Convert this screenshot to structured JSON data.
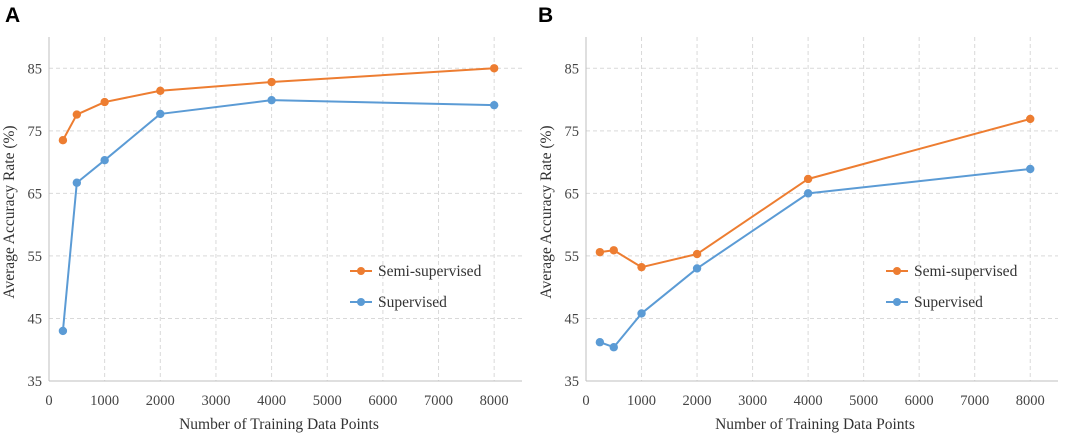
{
  "chart_data": [
    {
      "panel_label": "A",
      "type": "line",
      "xlabel": "Number of Training Data Points",
      "ylabel": "Average Accuracy Rate (%)",
      "xlim": [
        0,
        8500
      ],
      "ylim": [
        35,
        90
      ],
      "xticks": [
        0,
        1000,
        2000,
        3000,
        4000,
        5000,
        6000,
        7000,
        8000
      ],
      "yticks": [
        35,
        45,
        55,
        65,
        75,
        85
      ],
      "grid": true,
      "legend_position": "right",
      "series": [
        {
          "name": "Semi-supervised",
          "color": "#ED7D31",
          "x": [
            250,
            500,
            1000,
            2000,
            4000,
            8000
          ],
          "y": [
            73.5,
            77.6,
            79.6,
            81.4,
            82.8,
            85.0
          ]
        },
        {
          "name": "Supervised",
          "color": "#5B9BD5",
          "x": [
            250,
            500,
            1000,
            2000,
            4000,
            8000
          ],
          "y": [
            43.0,
            66.7,
            70.3,
            77.7,
            79.9,
            79.1
          ]
        }
      ]
    },
    {
      "panel_label": "B",
      "type": "line",
      "xlabel": "Number of Training Data Points",
      "ylabel": "Average Accuracy Rate (%)",
      "xlim": [
        0,
        8500
      ],
      "ylim": [
        35,
        90
      ],
      "xticks": [
        0,
        1000,
        2000,
        3000,
        4000,
        5000,
        6000,
        7000,
        8000
      ],
      "yticks": [
        35,
        45,
        55,
        65,
        75,
        85
      ],
      "grid": true,
      "legend_position": "right",
      "series": [
        {
          "name": "Semi-supervised",
          "color": "#ED7D31",
          "x": [
            250,
            500,
            1000,
            2000,
            4000,
            8000
          ],
          "y": [
            55.6,
            55.9,
            53.2,
            55.3,
            67.3,
            76.9
          ]
        },
        {
          "name": "Supervised",
          "color": "#5B9BD5",
          "x": [
            250,
            500,
            1000,
            2000,
            4000,
            8000
          ],
          "y": [
            41.2,
            40.4,
            45.8,
            53.0,
            65.0,
            68.9
          ]
        }
      ]
    }
  ]
}
